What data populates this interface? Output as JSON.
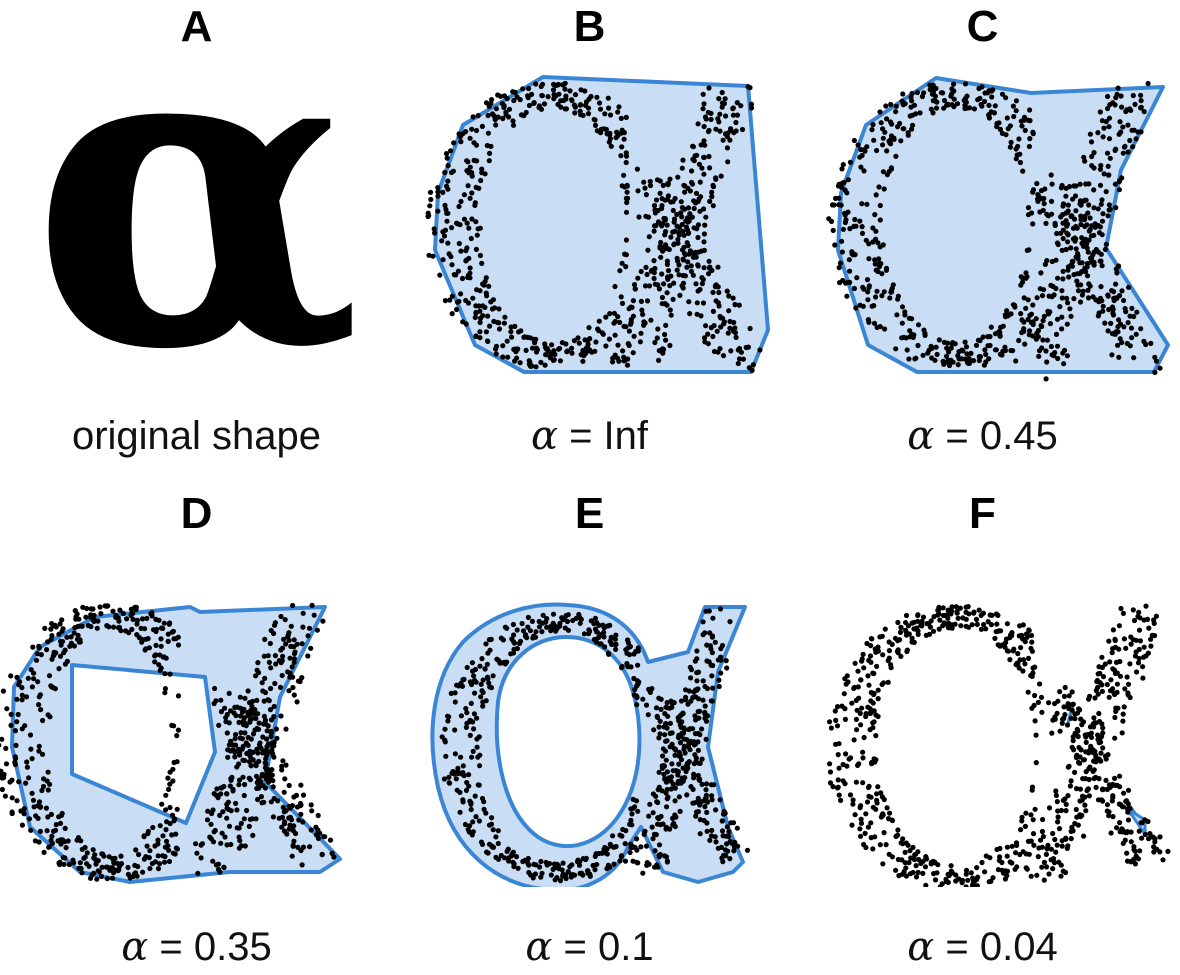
{
  "panels": [
    {
      "letter": "A",
      "caption": "original shape",
      "alpha": null,
      "glyph": "α",
      "kind": "original"
    },
    {
      "letter": "B",
      "caption_symbol": "α",
      "caption_value": " = Inf",
      "alpha": "Inf",
      "kind": "hull"
    },
    {
      "letter": "C",
      "caption_symbol": "α",
      "caption_value": " = 0.45",
      "alpha": 0.45,
      "kind": "hull"
    },
    {
      "letter": "D",
      "caption_symbol": "α",
      "caption_value": " = 0.35",
      "alpha": 0.35,
      "kind": "hull"
    },
    {
      "letter": "E",
      "caption_symbol": "α",
      "caption_value": " = 0.1",
      "alpha": 0.1,
      "kind": "hull"
    },
    {
      "letter": "F",
      "caption_symbol": "α",
      "caption_value": " = 0.04",
      "alpha": 0.04,
      "kind": "hull"
    }
  ],
  "colors": {
    "hull_stroke": "#3a86d4",
    "hull_fill": "#c9def4",
    "points": "#000000",
    "glyph": "#000000"
  }
}
